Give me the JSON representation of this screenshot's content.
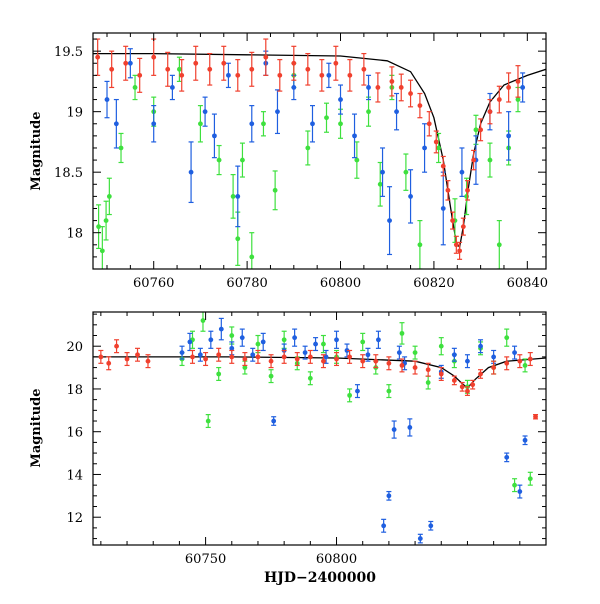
{
  "figure": {
    "xlabel": "HJD−2400000",
    "colors": {
      "green": "#3ee03e",
      "blue": "#1f5fe0",
      "red": "#f0402e",
      "model": "#000000"
    }
  },
  "chart_data": [
    {
      "type": "scatter",
      "title": "",
      "xlabel": "",
      "ylabel": "Magnitude",
      "xlim": [
        60747,
        60844
      ],
      "ylim": [
        19.65,
        17.7
      ],
      "y_inverted": true,
      "x_ticks": [
        60760,
        60780,
        60800,
        60820,
        60840
      ],
      "y_ticks": [
        18,
        18.5,
        19,
        19.5
      ],
      "y_tick_labels": [
        "18",
        "18.5",
        "19",
        "19.5"
      ],
      "series": [
        {
          "color": "#3ee03e",
          "x": [
            60748.2,
            60749.0,
            60749.8,
            60750.5,
            60753.0,
            60756.0,
            60760.0,
            60765.5,
            60770.0,
            60774.0,
            60777.0,
            60778.0,
            60779.0,
            60781.0,
            60783.5,
            60786.0,
            60790.0,
            60793.0,
            60797.0,
            60800.0,
            60803.5,
            60806.0,
            60808.5,
            60811.0,
            60814.0,
            60817.0,
            60821.0,
            60824.5,
            60827.0,
            60829.0,
            60832.0,
            60834.0,
            60836.0,
            60838.0
          ],
          "y": [
            18.05,
            17.85,
            18.1,
            18.3,
            18.7,
            19.2,
            19.0,
            19.35,
            18.9,
            18.6,
            18.3,
            17.95,
            18.6,
            17.8,
            18.9,
            18.35,
            19.3,
            18.7,
            18.95,
            18.9,
            18.6,
            19.0,
            18.4,
            19.2,
            18.5,
            17.9,
            18.7,
            18.1,
            18.3,
            18.85,
            18.6,
            17.9,
            18.7,
            19.1
          ],
          "err": [
            0.18,
            0.2,
            0.16,
            0.15,
            0.12,
            0.1,
            0.12,
            0.1,
            0.15,
            0.12,
            0.18,
            0.22,
            0.14,
            0.2,
            0.1,
            0.16,
            0.1,
            0.14,
            0.12,
            0.12,
            0.15,
            0.12,
            0.18,
            0.1,
            0.15,
            0.2,
            0.12,
            0.18,
            0.15,
            0.12,
            0.14,
            0.2,
            0.14,
            0.1
          ]
        },
        {
          "color": "#1f5fe0",
          "x": [
            60750.0,
            60752.0,
            60755.0,
            60760.0,
            60764.0,
            60768.0,
            60771.0,
            60773.0,
            60776.0,
            60778.0,
            60781.0,
            60784.0,
            60786.5,
            60790.0,
            60794.0,
            60797.5,
            60800.0,
            60803.0,
            60806.0,
            60809.0,
            60810.5,
            60812.0,
            60815.0,
            60818.0,
            60822.0,
            60826.0,
            60829.0,
            60832.0,
            60836.0,
            60839.0
          ],
          "y": [
            19.1,
            18.9,
            19.4,
            18.9,
            19.2,
            18.5,
            19.0,
            18.8,
            19.3,
            18.3,
            18.9,
            19.4,
            19.0,
            19.2,
            18.9,
            19.3,
            19.1,
            18.8,
            19.2,
            18.5,
            18.1,
            19.0,
            18.3,
            18.7,
            18.2,
            18.5,
            18.6,
            19.0,
            18.8,
            19.2
          ],
          "err": [
            0.15,
            0.2,
            0.12,
            0.15,
            0.1,
            0.25,
            0.12,
            0.18,
            0.1,
            0.25,
            0.15,
            0.1,
            0.18,
            0.1,
            0.15,
            0.1,
            0.12,
            0.18,
            0.1,
            0.2,
            0.28,
            0.15,
            0.22,
            0.2,
            0.3,
            0.2,
            0.2,
            0.15,
            0.2,
            0.12
          ]
        },
        {
          "color": "#f0402e",
          "x": [
            60748.0,
            60751.0,
            60754.0,
            60757.0,
            60760.0,
            60763.0,
            60766.0,
            60769.0,
            60772.0,
            60775.0,
            60778.0,
            60781.0,
            60784.0,
            60787.0,
            60790.0,
            60793.0,
            60796.0,
            60799.0,
            60802.0,
            60805.0,
            60808.0,
            60811.0,
            60813.0,
            60815.0,
            60817.0,
            60819.0,
            60820.5,
            60822.0,
            60823.0,
            60824.0,
            60824.8,
            60825.5,
            60826.3,
            60827.2,
            60828.5,
            60830.0,
            60832.0,
            60834.0,
            60836.0,
            60838.0
          ],
          "y": [
            19.45,
            19.35,
            19.4,
            19.3,
            19.45,
            19.35,
            19.3,
            19.4,
            19.35,
            19.4,
            19.3,
            19.35,
            19.45,
            19.3,
            19.4,
            19.35,
            19.3,
            19.4,
            19.3,
            19.35,
            19.2,
            19.25,
            19.2,
            19.15,
            19.05,
            18.9,
            18.75,
            18.55,
            18.35,
            18.1,
            17.9,
            17.85,
            18.05,
            18.35,
            18.6,
            18.85,
            19.0,
            19.1,
            19.2,
            19.25
          ],
          "err": [
            0.15,
            0.15,
            0.14,
            0.14,
            0.15,
            0.14,
            0.13,
            0.14,
            0.13,
            0.14,
            0.13,
            0.14,
            0.15,
            0.13,
            0.14,
            0.13,
            0.13,
            0.14,
            0.13,
            0.13,
            0.12,
            0.12,
            0.11,
            0.11,
            0.1,
            0.1,
            0.09,
            0.08,
            0.08,
            0.07,
            0.07,
            0.07,
            0.07,
            0.08,
            0.08,
            0.09,
            0.1,
            0.11,
            0.12,
            0.13
          ]
        }
      ],
      "model_curve": {
        "color": "#000000",
        "x": [
          60747,
          60760,
          60780,
          60800,
          60810,
          60815,
          60818,
          60820,
          60822,
          60823,
          60824,
          60824.8,
          60825.5,
          60826.3,
          60827.3,
          60828.5,
          60830,
          60832,
          60835,
          60840,
          60844
        ],
        "y": [
          19.48,
          19.48,
          19.47,
          19.46,
          19.42,
          19.33,
          19.15,
          18.95,
          18.6,
          18.35,
          18.1,
          17.92,
          17.88,
          18.05,
          18.35,
          18.65,
          18.9,
          19.08,
          19.22,
          19.3,
          19.35
        ]
      }
    },
    {
      "type": "scatter",
      "title": "",
      "xlabel": "HJD−2400000",
      "ylabel": "Magnitude",
      "xlim": [
        60707,
        60880
      ],
      "ylim": [
        21.6,
        10.7
      ],
      "y_inverted": true,
      "x_ticks": [
        60750,
        60800
      ],
      "y_ticks": [
        12,
        14,
        16,
        18,
        20
      ],
      "y_tick_labels": [
        "12",
        "14",
        "16",
        "18",
        "20"
      ],
      "series": [
        {
          "color": "#3ee03e",
          "x": [
            60741,
            60745,
            60749,
            60751,
            60755,
            60760,
            60765,
            60770,
            60775,
            60780,
            60785,
            60790,
            60795,
            60800,
            60805,
            60810,
            60815,
            60820,
            60825,
            60830,
            60835,
            60840,
            60845,
            60850,
            60855,
            60860,
            60865,
            60868,
            60872,
            60874
          ],
          "y": [
            19.4,
            20.3,
            21.2,
            16.5,
            18.7,
            20.5,
            19.0,
            20.1,
            18.6,
            20.3,
            19.2,
            18.5,
            20.1,
            19.5,
            17.7,
            20.2,
            19.0,
            17.9,
            20.6,
            19.7,
            18.3,
            20.0,
            19.3,
            18.1,
            19.9,
            19.0,
            20.4,
            13.5,
            19.1,
            13.8
          ],
          "err": [
            0.3,
            0.4,
            0.5,
            0.3,
            0.3,
            0.4,
            0.3,
            0.4,
            0.3,
            0.4,
            0.3,
            0.3,
            0.4,
            0.3,
            0.3,
            0.4,
            0.3,
            0.3,
            0.5,
            0.3,
            0.3,
            0.4,
            0.3,
            0.3,
            0.3,
            0.3,
            0.4,
            0.3,
            0.3,
            0.3
          ]
        },
        {
          "color": "#1f5fe0",
          "x": [
            60741,
            60744,
            60748,
            60752,
            60756,
            60760,
            60764,
            60768,
            60772,
            60776,
            60780,
            60784,
            60788,
            60792,
            60796,
            60800,
            60804,
            60808,
            60812,
            60816,
            60818,
            60820,
            60822,
            60824,
            60826,
            60828,
            60832,
            60836,
            60840,
            60845,
            60850,
            60855,
            60860,
            60865,
            60868,
            60870,
            60872
          ],
          "y": [
            19.7,
            20.2,
            19.6,
            20.3,
            20.8,
            19.9,
            20.4,
            19.6,
            20.2,
            16.5,
            19.8,
            20.4,
            19.7,
            20.1,
            19.5,
            20.3,
            19.8,
            17.9,
            19.6,
            20.3,
            11.6,
            13.0,
            16.1,
            19.7,
            19.2,
            16.2,
            11.0,
            11.6,
            18.8,
            19.6,
            19.3,
            20.0,
            19.5,
            14.8,
            19.7,
            13.2,
            15.6
          ],
          "err": [
            0.3,
            0.4,
            0.3,
            0.4,
            0.5,
            0.3,
            0.4,
            0.3,
            0.4,
            0.2,
            0.3,
            0.4,
            0.3,
            0.3,
            0.3,
            0.4,
            0.3,
            0.3,
            0.3,
            0.4,
            0.3,
            0.2,
            0.4,
            0.3,
            0.3,
            0.4,
            0.2,
            0.2,
            0.3,
            0.3,
            0.3,
            0.3,
            0.3,
            0.2,
            0.3,
            0.3,
            0.2
          ]
        },
        {
          "color": "#f0402e",
          "x": [
            60710,
            60713,
            60716,
            60720,
            60724,
            60728,
            60745,
            60750,
            60755,
            60760,
            60765,
            60770,
            60775,
            60780,
            60785,
            60790,
            60795,
            60800,
            60805,
            60810,
            60815,
            60820,
            60825,
            60830,
            60835,
            60840,
            60845,
            60848,
            60850,
            60852,
            60855,
            60860,
            60865,
            60870,
            60874,
            60876
          ],
          "y": [
            19.5,
            19.2,
            20.0,
            19.4,
            19.6,
            19.3,
            19.5,
            19.4,
            19.6,
            19.5,
            19.4,
            19.5,
            19.3,
            19.5,
            19.4,
            19.5,
            19.3,
            19.4,
            19.5,
            19.3,
            19.3,
            19.2,
            19.1,
            19.0,
            18.9,
            18.7,
            18.4,
            18.1,
            17.9,
            18.2,
            18.7,
            19.0,
            19.2,
            19.3,
            19.4,
            16.7
          ],
          "err": [
            0.3,
            0.3,
            0.3,
            0.3,
            0.3,
            0.3,
            0.3,
            0.3,
            0.3,
            0.3,
            0.3,
            0.3,
            0.3,
            0.3,
            0.3,
            0.3,
            0.3,
            0.3,
            0.3,
            0.3,
            0.3,
            0.3,
            0.3,
            0.3,
            0.3,
            0.3,
            0.2,
            0.2,
            0.2,
            0.2,
            0.2,
            0.3,
            0.3,
            0.3,
            0.3,
            0.1
          ]
        }
      ],
      "model_curve": {
        "color": "#000000",
        "x": [
          60707,
          60760,
          60800,
          60830,
          60840,
          60845,
          60848,
          60850,
          60853,
          60858,
          60865,
          60880
        ],
        "y": [
          19.5,
          19.5,
          19.45,
          19.3,
          19.0,
          18.6,
          18.25,
          18.05,
          18.45,
          19.0,
          19.3,
          19.45
        ]
      }
    }
  ]
}
